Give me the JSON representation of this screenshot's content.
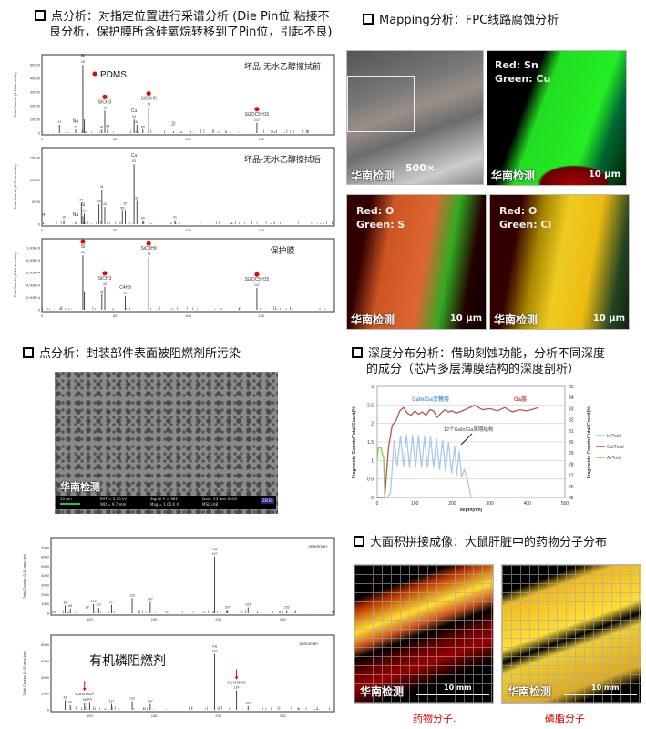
{
  "section1": {
    "title_line1": "点分析：对指定位置进行采谱分析 (Die Pin位 粘接不",
    "title_line2": "良分析，保护膜所含硅氧烷转移到了Pin位，引起不良)",
    "legend_label": "PDMS",
    "ylabel": "Total Counts (0.10 amu bin)",
    "spectra": [
      {
        "title": "坏品-无水乙醇擦拭前",
        "ymax": 60000,
        "yticks": [
          "0",
          "10000",
          "20000",
          "30000",
          "40000",
          "50000"
        ],
        "peaks": [
          [
            12,
            0.12,
            "12"
          ],
          [
            23,
            0.05,
            "23",
            "Na"
          ],
          [
            28,
            1.0,
            "28",
            "Si"
          ],
          [
            29,
            0.2,
            ""
          ],
          [
            41,
            0.05,
            "41"
          ],
          [
            43,
            0.33,
            "43",
            "SiCH3",
            true
          ],
          [
            45,
            0.06,
            "45"
          ],
          [
            63,
            0.2,
            "63",
            "Cu"
          ],
          [
            65,
            0.12,
            "65"
          ],
          [
            69,
            0.05,
            "69"
          ],
          [
            73,
            0.38,
            "73",
            "SiC3H9",
            true
          ],
          [
            90,
            0.02,
            "",
            "Zr"
          ],
          [
            147,
            0.15,
            "147",
            "Si2OC5H15",
            true
          ]
        ],
        "dot_si": true
      },
      {
        "title": "坏品-无水乙醇擦拭后",
        "ymax": 17000,
        "yticks": [
          "0",
          "5000",
          "10000",
          "15000"
        ],
        "peaks": [
          [
            1,
            0.02,
            "",
            "H"
          ],
          [
            15,
            0.06,
            "15"
          ],
          [
            23,
            0.03,
            "",
            "Na"
          ],
          [
            27,
            0.32,
            "27"
          ],
          [
            28,
            0.12,
            "",
            "Si"
          ],
          [
            29,
            0.16,
            "29"
          ],
          [
            39,
            0.3,
            "39"
          ],
          [
            41,
            0.52,
            "41"
          ],
          [
            43,
            0.26,
            "43"
          ],
          [
            55,
            0.2,
            "55"
          ],
          [
            57,
            0.2,
            "57"
          ],
          [
            63,
            0.9,
            "63",
            "Cu"
          ],
          [
            65,
            0.35,
            "65"
          ],
          [
            69,
            0.05,
            "69"
          ],
          [
            91,
            0.06,
            "91"
          ]
        ]
      },
      {
        "title": "保护膜",
        "ymax": 100000,
        "yticks": [
          "0",
          "2.00E+4",
          "4.00E+4",
          "6.00E+4",
          "8.00E+4",
          "1.00E+5"
        ],
        "peaks": [
          [
            28,
            0.88,
            "28",
            "Si",
            true
          ],
          [
            29,
            0.3,
            ""
          ],
          [
            41,
            0.25,
            "41"
          ],
          [
            43,
            0.37,
            "43",
            "SiCH3",
            true
          ],
          [
            57,
            0.22,
            "57",
            "C4H9"
          ],
          [
            73,
            0.85,
            "73",
            "SiC3H9",
            true
          ],
          [
            147,
            0.35,
            "147",
            "Si2OC5H15",
            true
          ]
        ]
      }
    ],
    "xticks": [
      "0",
      "50",
      "100",
      "150"
    ]
  },
  "section2": {
    "title": "Mapping分析：FPC线路腐蚀分析",
    "magnification": "500×",
    "watermark": "华南检测",
    "scale_bar": "10 μm",
    "maps": [
      {
        "line1": "Red: Sn",
        "line2": "Green: Cu"
      },
      {
        "line1": "Red: O",
        "line2": "Green: S"
      },
      {
        "line1": "Red: O",
        "line2": "Green: Cl"
      }
    ]
  },
  "section3": {
    "title": "点分析：封装部件表面被阻燃剂所污染",
    "watermark": "华南检测",
    "sem_info": {
      "scale": "10 μm",
      "eht": "EHT = 2.00 kV",
      "wd": "WD = 9.7 mm",
      "signal": "Signal A = SE2",
      "mag": "Mag = 1.00 K X",
      "date": "Date :23 Nov 2016",
      "lab": "MSL LAB",
      "logo": "ZEISS"
    },
    "ylabel": "Total Counts (0.20 amu bin)",
    "xticks": [
      "100",
      "150",
      "200",
      "250"
    ],
    "reference": {
      "tag": "reference+",
      "yticks": [
        "0",
        "1000",
        "2000",
        "3000",
        "4000",
        "5000",
        "6000",
        "7000"
      ],
      "ymax": 7000,
      "peaks": [
        [
          81,
          0.12,
          "81"
        ],
        [
          85,
          0.07,
          "85"
        ],
        [
          98,
          0.05,
          "98"
        ],
        [
          103,
          0.14,
          "103"
        ],
        [
          107,
          0.08,
          "107"
        ],
        [
          117,
          0.13,
          "117"
        ],
        [
          133,
          0.23,
          "133"
        ],
        [
          147,
          0.17,
          "147"
        ],
        [
          197,
          0.86,
          "197",
          "Au"
        ],
        [
          207,
          0.05,
          "207"
        ],
        [
          223,
          0.09,
          "223"
        ],
        [
          253,
          0.05,
          "253"
        ]
      ]
    },
    "abnormal": {
      "tag": "abnormal+",
      "yticks": [
        "0",
        "2000",
        "4000",
        "6000",
        "8000"
      ],
      "ymax": 8500,
      "annotation": "有机磷阻燃剂",
      "peaks": [
        [
          81,
          0.15,
          "81"
        ],
        [
          85,
          0.07,
          "85"
        ],
        [
          96,
          0.11,
          "96",
          "C3H2NOP",
          true
        ],
        [
          100,
          0.12,
          "100"
        ],
        [
          117,
          0.09,
          "117"
        ],
        [
          133,
          0.13,
          "133"
        ],
        [
          147,
          0.09,
          "147"
        ],
        [
          197,
          0.86,
          "197",
          "Au"
        ],
        [
          214,
          0.3,
          "214",
          "C14H30O",
          true
        ],
        [
          223,
          0.06,
          "223"
        ]
      ]
    }
  },
  "section4": {
    "title_line1": "深度分布分析：借助刻蚀功能，分析不同深度",
    "title_line2": "的成分（芯片多层薄膜结构的深度剖析）"
  },
  "chart_data": {
    "type": "line",
    "xlabel": "depth(nm)",
    "ylabel": "Fragments Counts/Total Count(%)",
    "y2label": "Fragments Counts/Total Count(%)",
    "xlim": [
      0,
      500
    ],
    "ylim": [
      0,
      3
    ],
    "y2lim": [
      25,
      35
    ],
    "xticks": [
      "0",
      "100",
      "200",
      "300",
      "400",
      "500"
    ],
    "yticks": [
      "0",
      "0.5",
      "1",
      "1.5",
      "2",
      "2.5",
      "3"
    ],
    "y2ticks": [
      "25",
      "26",
      "27",
      "28",
      "29",
      "30",
      "31",
      "32",
      "33",
      "34",
      "35"
    ],
    "grid": true,
    "legend": "right",
    "annotations": [
      "GaIn/Ga交替层",
      "Ga层",
      "12个GaIn/Ga周期结构"
    ],
    "series": [
      {
        "name": "In/Total",
        "axis": "left",
        "color": "#a9c8ea",
        "x": [
          0,
          25,
          35,
          45,
          53,
          62,
          70,
          78,
          86,
          94,
          102,
          110,
          118,
          126,
          134,
          142,
          150,
          158,
          166,
          174,
          182,
          190,
          198,
          206,
          212,
          218,
          225,
          232,
          240,
          250,
          430
        ],
        "y": [
          0,
          0,
          0.1,
          1.55,
          0.85,
          1.65,
          0.85,
          1.7,
          0.8,
          1.7,
          0.8,
          1.68,
          0.8,
          1.65,
          0.8,
          1.65,
          0.8,
          1.6,
          0.75,
          1.55,
          0.7,
          1.5,
          0.65,
          1.4,
          0.6,
          1.25,
          0.55,
          0.75,
          0.5,
          0,
          0
        ]
      },
      {
        "name": "Ga/Total",
        "axis": "right",
        "color": "#c0504d",
        "x": [
          0,
          20,
          30,
          40,
          50,
          60,
          70,
          80,
          90,
          100,
          110,
          120,
          130,
          140,
          150,
          160,
          170,
          180,
          190,
          200,
          210,
          220,
          240,
          260,
          280,
          300,
          320,
          340,
          360,
          380,
          400,
          420,
          430
        ],
        "y": [
          25,
          25,
          29.5,
          31.5,
          31.9,
          32.8,
          33.1,
          32.6,
          32.4,
          32.8,
          32.5,
          32.7,
          32.4,
          32.9,
          32.8,
          32.2,
          32.6,
          32.9,
          32.7,
          32.8,
          32.6,
          32.7,
          33.0,
          33.3,
          32.9,
          33.0,
          32.8,
          33.1,
          32.7,
          32.9,
          32.8,
          33.0,
          33.1
        ]
      },
      {
        "name": "Al/Total",
        "axis": "left",
        "color": "#7fcf3f",
        "x": [
          0,
          3,
          10,
          14,
          17,
          20
        ],
        "y": [
          1.0,
          1.35,
          1.35,
          1.15,
          1.1,
          0
        ]
      }
    ]
  },
  "section5": {
    "title": "大面积拼接成像：大鼠肝脏中的药物分子分布",
    "watermark": "华南检测",
    "scale_bar": "10 mm",
    "captions": [
      "药物分子.",
      "磷脂分子"
    ]
  }
}
